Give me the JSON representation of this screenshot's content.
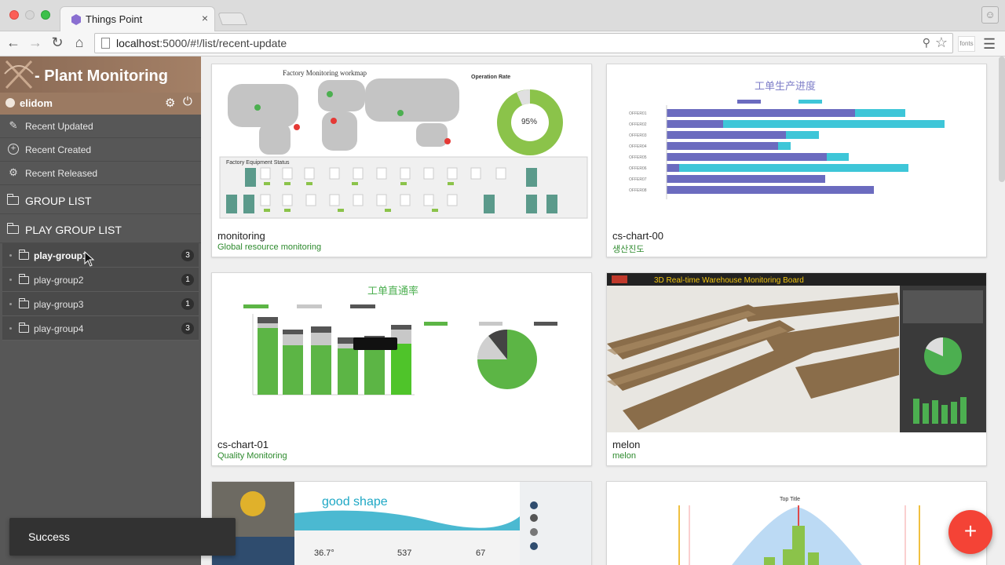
{
  "browser": {
    "tab_title": "Things Point",
    "tab_close": "×",
    "url_host": "localhost",
    "url_rest": ":5000/#!/list/recent-update",
    "fonts_label": "fonts"
  },
  "sidebar": {
    "brand": "- Plant Monitoring",
    "user": "elidom",
    "nav": [
      {
        "label": "Recent Updated",
        "icon": "pencil-icon"
      },
      {
        "label": "Recent Created",
        "icon": "plus-circle-icon"
      },
      {
        "label": "Recent Released",
        "icon": "gear-icon"
      }
    ],
    "group_list_label": "GROUP LIST",
    "play_group_list_label": "PLAY GROUP LIST",
    "play_groups": [
      {
        "name": "play-group1",
        "count": "3"
      },
      {
        "name": "play-group2",
        "count": "1"
      },
      {
        "name": "play-group3",
        "count": "1"
      },
      {
        "name": "play-group4",
        "count": "3"
      }
    ]
  },
  "boards": [
    {
      "name": "monitoring",
      "description": "Global resource monitoring"
    },
    {
      "name": "cs-chart-00",
      "description": "생산진도"
    },
    {
      "name": "cs-chart-01",
      "description": "Quality Monitoring"
    },
    {
      "name": "melon",
      "description": "melon"
    }
  ],
  "thumbnails": {
    "monitoring_title": "Factory Monitoring workmap",
    "monitoring_rate_label": "Operation Rate",
    "monitoring_rate_value": "95%",
    "monitoring_equipment_label": "Factory Equipment Status",
    "chart00_title": "工单生产进度",
    "chart01_title": "工单直通率",
    "melon_title": "3D Real-time Warehouse Monitoring Board",
    "shape_title": "good shape",
    "shape_temp": "36.7°",
    "shape_oxygen": "537",
    "shape_other": "67",
    "bell_title": "Top Title"
  },
  "toast": "Success",
  "fab_label": "+",
  "colors": {
    "accent": "#f44336",
    "sidebar": "#575757",
    "brand": "#9b7a62",
    "desc": "#2d8a2d"
  }
}
